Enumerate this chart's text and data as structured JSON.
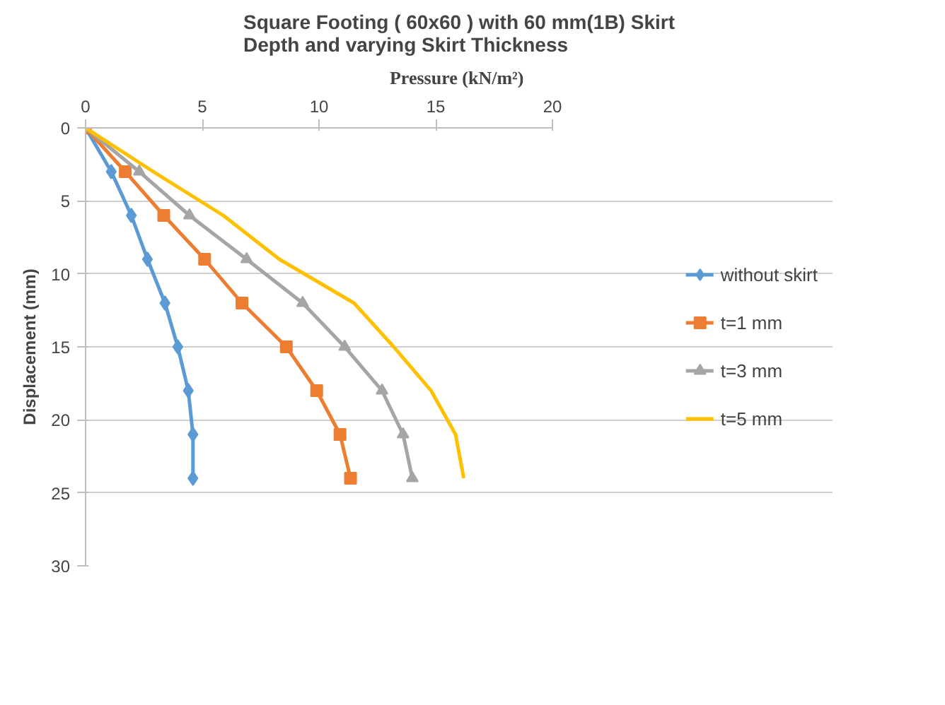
{
  "chart_data": {
    "type": "line",
    "title": "Square Footing ( 60x60 ) with 60 mm(1B) Skirt\nDepth and varying Skirt Thickness",
    "xlabel": "Pressure  (kN/m²)",
    "ylabel": "Displacement (mm)",
    "xlim": [
      0,
      20
    ],
    "xticks": [
      0,
      5,
      10,
      15,
      20
    ],
    "ylim": [
      30,
      0
    ],
    "yticks": [
      0,
      5,
      10,
      15,
      20,
      25,
      30
    ],
    "grid": "y",
    "legend": "right",
    "series": [
      {
        "name": "without skirt",
        "color": "#5b9bd5",
        "marker": "diamond",
        "x": [
          0,
          1.1,
          1.96,
          2.65,
          3.4,
          3.95,
          4.4,
          4.6,
          4.6
        ],
        "values": [
          0,
          3,
          6,
          9,
          12,
          15,
          18,
          21,
          24
        ]
      },
      {
        "name": "t=1 mm",
        "color": "#ed7d31",
        "marker": "square",
        "x": [
          0,
          1.7,
          3.35,
          5.1,
          6.7,
          8.6,
          9.9,
          10.9,
          11.35
        ],
        "values": [
          0,
          3,
          6,
          9,
          12,
          15,
          18,
          21,
          24
        ]
      },
      {
        "name": "t=3 mm",
        "color": "#a5a5a5",
        "marker": "triangle",
        "x": [
          0,
          2.3,
          4.45,
          6.9,
          9.3,
          11.1,
          12.7,
          13.6,
          14.0
        ],
        "values": [
          0,
          3,
          6,
          9,
          12,
          15,
          18,
          21,
          24
        ]
      },
      {
        "name": "t=5 mm",
        "color": "#ffc000",
        "marker": "none",
        "x": [
          0,
          2.9,
          5.9,
          8.3,
          11.5,
          13.2,
          14.8,
          15.85,
          16.2
        ],
        "values": [
          0,
          3,
          6,
          9,
          12,
          15,
          18,
          21,
          24
        ]
      }
    ]
  }
}
